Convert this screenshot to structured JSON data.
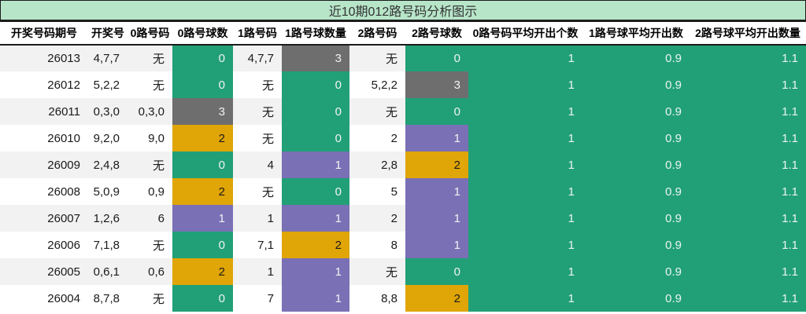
{
  "title": "近10期012路号码分析图示",
  "colors": {
    "green": "#21a077",
    "gray": "#6e6e6e",
    "yellow": "#e0a506",
    "purple": "#7a70b5",
    "title_bg": "#b7e5c8",
    "zebra": "#f2f2f2",
    "chip_text_light": "#f2f2f2",
    "chip_text_dark": "#1a1a1a",
    "avg_text": "#e9f4ee"
  },
  "table": {
    "columns": [
      {
        "key": "period",
        "label": "开奖号码期号",
        "width": 112
      },
      {
        "key": "draw",
        "label": "开奖号",
        "width": 50
      },
      {
        "key": "r0",
        "label": "0路号码",
        "width": 57
      },
      {
        "key": "r0n",
        "label": "0路号球数",
        "width": 77,
        "chip": true,
        "colorKey": "r0c"
      },
      {
        "key": "r1",
        "label": "1路号码",
        "width": 62
      },
      {
        "key": "r1n",
        "label": "1路号球数量",
        "width": 86,
        "chip": true,
        "colorKey": "r1c"
      },
      {
        "key": "r2",
        "label": "2路号码",
        "width": 71
      },
      {
        "key": "r2n",
        "label": "2路号球数",
        "width": 80,
        "chip": true,
        "colorKey": "r2c"
      },
      {
        "key": "avg0",
        "label": "0路号码平均开出个数",
        "width": 145,
        "green": true
      },
      {
        "key": "avg1",
        "label": "1路号球平均开出数",
        "width": 136,
        "green": true
      },
      {
        "key": "avg2",
        "label": "2路号球平均开出数量",
        "width": 148,
        "green": true
      }
    ],
    "rows": [
      {
        "period": "26013",
        "draw": "4,7,7",
        "r0": "无",
        "r0n": "0",
        "r0c": "green",
        "r1": "4,7,7",
        "r1n": "3",
        "r1c": "gray",
        "r2": "无",
        "r2n": "0",
        "r2c": "green",
        "avg0": "1",
        "avg1": "0.9",
        "avg2": "1.1"
      },
      {
        "period": "26012",
        "draw": "5,2,2",
        "r0": "无",
        "r0n": "0",
        "r0c": "green",
        "r1": "无",
        "r1n": "0",
        "r1c": "green",
        "r2": "5,2,2",
        "r2n": "3",
        "r2c": "gray",
        "avg0": "1",
        "avg1": "0.9",
        "avg2": "1.1"
      },
      {
        "period": "26011",
        "draw": "0,3,0",
        "r0": "0,3,0",
        "r0n": "3",
        "r0c": "gray",
        "r1": "无",
        "r1n": "0",
        "r1c": "green",
        "r2": "无",
        "r2n": "0",
        "r2c": "green",
        "avg0": "1",
        "avg1": "0.9",
        "avg2": "1.1"
      },
      {
        "period": "26010",
        "draw": "9,2,0",
        "r0": "9,0",
        "r0n": "2",
        "r0c": "yellow",
        "r1": "无",
        "r1n": "0",
        "r1c": "green",
        "r2": "2",
        "r2n": "1",
        "r2c": "purple",
        "avg0": "1",
        "avg1": "0.9",
        "avg2": "1.1"
      },
      {
        "period": "26009",
        "draw": "2,4,8",
        "r0": "无",
        "r0n": "0",
        "r0c": "green",
        "r1": "4",
        "r1n": "1",
        "r1c": "purple",
        "r2": "2,8",
        "r2n": "2",
        "r2c": "yellow",
        "avg0": "1",
        "avg1": "0.9",
        "avg2": "1.1"
      },
      {
        "period": "26008",
        "draw": "5,0,9",
        "r0": "0,9",
        "r0n": "2",
        "r0c": "yellow",
        "r1": "无",
        "r1n": "0",
        "r1c": "green",
        "r2": "5",
        "r2n": "1",
        "r2c": "purple",
        "avg0": "1",
        "avg1": "0.9",
        "avg2": "1.1"
      },
      {
        "period": "26007",
        "draw": "1,2,6",
        "r0": "6",
        "r0n": "1",
        "r0c": "purple",
        "r1": "1",
        "r1n": "1",
        "r1c": "purple",
        "r2": "2",
        "r2n": "1",
        "r2c": "purple",
        "avg0": "1",
        "avg1": "0.9",
        "avg2": "1.1"
      },
      {
        "period": "26006",
        "draw": "7,1,8",
        "r0": "无",
        "r0n": "0",
        "r0c": "green",
        "r1": "7,1",
        "r1n": "2",
        "r1c": "yellow",
        "r2": "8",
        "r2n": "1",
        "r2c": "purple",
        "avg0": "1",
        "avg1": "0.9",
        "avg2": "1.1"
      },
      {
        "period": "26005",
        "draw": "0,6,1",
        "r0": "0,6",
        "r0n": "2",
        "r0c": "yellow",
        "r1": "1",
        "r1n": "1",
        "r1c": "purple",
        "r2": "无",
        "r2n": "0",
        "r2c": "green",
        "avg0": "1",
        "avg1": "0.9",
        "avg2": "1.1"
      },
      {
        "period": "26004",
        "draw": "8,7,8",
        "r0": "无",
        "r0n": "0",
        "r0c": "green",
        "r1": "7",
        "r1n": "1",
        "r1c": "purple",
        "r2": "8,8",
        "r2n": "2",
        "r2c": "yellow",
        "avg0": "1",
        "avg1": "0.9",
        "avg2": "1.1"
      }
    ]
  },
  "chart_data": {
    "type": "table",
    "title": "近10期012路号码分析图示",
    "columns": [
      "开奖号码期号",
      "开奖号",
      "0路号码",
      "0路号球数",
      "1路号码",
      "1路号球数量",
      "2路号码",
      "2路号球数",
      "0路号码平均开出个数",
      "1路号球平均开出数",
      "2路号球平均开出数量"
    ],
    "rows": [
      [
        "26013",
        "4,7,7",
        "无",
        0,
        "4,7,7",
        3,
        "无",
        0,
        1,
        0.9,
        1.1
      ],
      [
        "26012",
        "5,2,2",
        "无",
        0,
        "无",
        0,
        "5,2,2",
        3,
        1,
        0.9,
        1.1
      ],
      [
        "26011",
        "0,3,0",
        "0,3,0",
        3,
        "无",
        0,
        "无",
        0,
        1,
        0.9,
        1.1
      ],
      [
        "26010",
        "9,2,0",
        "9,0",
        2,
        "无",
        0,
        "2",
        1,
        1,
        0.9,
        1.1
      ],
      [
        "26009",
        "2,4,8",
        "无",
        0,
        "4",
        1,
        "2,8",
        2,
        1,
        0.9,
        1.1
      ],
      [
        "26008",
        "5,0,9",
        "0,9",
        2,
        "无",
        0,
        "5",
        1,
        1,
        0.9,
        1.1
      ],
      [
        "26007",
        "1,2,6",
        "6",
        1,
        "1",
        1,
        "2",
        1,
        1,
        0.9,
        1.1
      ],
      [
        "26006",
        "7,1,8",
        "无",
        0,
        "7,1",
        2,
        "8",
        1,
        1,
        0.9,
        1.1
      ],
      [
        "26005",
        "0,6,1",
        "0,6",
        2,
        "1",
        1,
        "无",
        0,
        1,
        0.9,
        1.1
      ],
      [
        "26004",
        "8,7,8",
        "无",
        0,
        "7",
        1,
        "8,8",
        2,
        1,
        0.9,
        1.1
      ]
    ],
    "count_cell_colors": {
      "0": "green",
      "1": "purple",
      "2": "yellow",
      "3": "gray"
    },
    "legend_position": "none",
    "grid": false
  }
}
